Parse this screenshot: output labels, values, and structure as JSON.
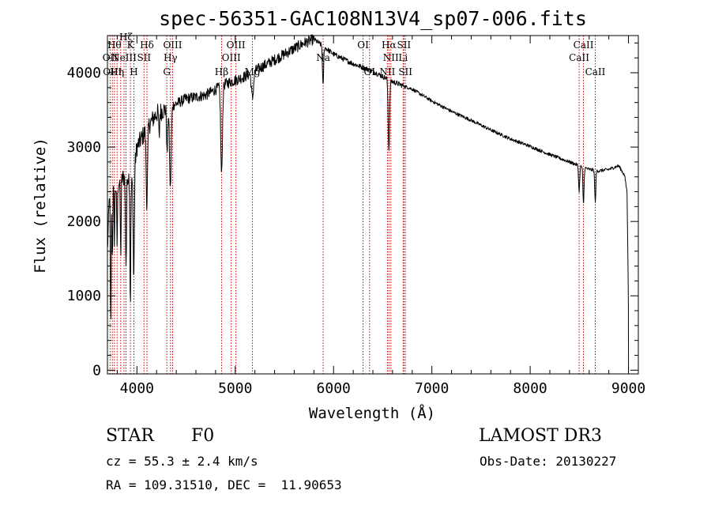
{
  "chart_data": {
    "type": "line",
    "title": "spec-56351-GAC108N13V4_sp07-006.fits",
    "xlabel": "Wavelength (Å)",
    "ylabel": "Flux (relative)",
    "xlim": [
      3700,
      9100
    ],
    "ylim": [
      -50,
      4500
    ],
    "xticks": [
      4000,
      5000,
      6000,
      7000,
      8000,
      9000
    ],
    "yticks": [
      0,
      1000,
      2000,
      3000,
      4000
    ],
    "continuum": [
      [
        3700,
        1600
      ],
      [
        3720,
        2350
      ],
      [
        3800,
        2500
      ],
      [
        3900,
        2650
      ],
      [
        3950,
        2500
      ],
      [
        4000,
        3000
      ],
      [
        4100,
        3250
      ],
      [
        4200,
        3450
      ],
      [
        4350,
        3550
      ],
      [
        4500,
        3650
      ],
      [
        4700,
        3700
      ],
      [
        4900,
        3850
      ],
      [
        5100,
        3950
      ],
      [
        5300,
        4100
      ],
      [
        5500,
        4250
      ],
      [
        5700,
        4400
      ],
      [
        5800,
        4450
      ],
      [
        5900,
        4350
      ],
      [
        6000,
        4250
      ],
      [
        6200,
        4120
      ],
      [
        6400,
        4020
      ],
      [
        6600,
        3880
      ],
      [
        6800,
        3780
      ],
      [
        7000,
        3620
      ],
      [
        7200,
        3480
      ],
      [
        7400,
        3360
      ],
      [
        7600,
        3230
      ],
      [
        7800,
        3110
      ],
      [
        8000,
        3010
      ],
      [
        8200,
        2900
      ],
      [
        8400,
        2800
      ],
      [
        8500,
        2750
      ],
      [
        8600,
        2700
      ],
      [
        8700,
        2680
      ],
      [
        8800,
        2700
      ],
      [
        8900,
        2750
      ],
      [
        8960,
        2620
      ],
      [
        8985,
        2400
      ],
      [
        8995,
        1400
      ],
      [
        9000,
        800
      ]
    ],
    "absorption": [
      {
        "x": 3734,
        "depth": 1800,
        "width": 6
      },
      {
        "x": 3750,
        "depth": 900,
        "width": 5
      },
      {
        "x": 3771,
        "depth": 700,
        "width": 5
      },
      {
        "x": 3798,
        "depth": 800,
        "width": 6
      },
      {
        "x": 3835,
        "depth": 1000,
        "width": 6
      },
      {
        "x": 3889,
        "depth": 1200,
        "width": 8
      },
      {
        "x": 3933,
        "depth": 1650,
        "width": 6
      },
      {
        "x": 3968,
        "depth": 1450,
        "width": 8
      },
      {
        "x": 4101,
        "depth": 1000,
        "width": 10
      },
      {
        "x": 4226,
        "depth": 350,
        "width": 6
      },
      {
        "x": 4307,
        "depth": 600,
        "width": 8
      },
      {
        "x": 4340,
        "depth": 1100,
        "width": 12
      },
      {
        "x": 4861,
        "depth": 1200,
        "width": 12
      },
      {
        "x": 5175,
        "depth": 350,
        "width": 15
      },
      {
        "x": 5893,
        "depth": 550,
        "width": 8
      },
      {
        "x": 6563,
        "depth": 950,
        "width": 10
      },
      {
        "x": 8498,
        "depth": 350,
        "width": 8
      },
      {
        "x": 8542,
        "depth": 500,
        "width": 8
      },
      {
        "x": 8662,
        "depth": 420,
        "width": 8
      }
    ],
    "lines": [
      {
        "wave": 3727,
        "label": "OII",
        "row": 2
      },
      {
        "wave": 3750,
        "label": "OIII",
        "row": 3
      },
      {
        "wave": 3771,
        "label": "Hθ",
        "row": 1
      },
      {
        "wave": 3798,
        "label": "Hη",
        "row": 3
      },
      {
        "wave": 3835,
        "label": "",
        "row": 0
      },
      {
        "wave": 3869,
        "label": "NeIII",
        "row": 2
      },
      {
        "wave": 3889,
        "label": "Hζ",
        "row": 0
      },
      {
        "wave": 3934,
        "label": "K",
        "row": 1
      },
      {
        "wave": 3969,
        "label": "H",
        "row": 3
      },
      {
        "wave": 4072,
        "label": "SII",
        "row": 2
      },
      {
        "wave": 4102,
        "label": "Hδ",
        "row": 1
      },
      {
        "wave": 4304,
        "label": "G",
        "row": 3
      },
      {
        "wave": 4341,
        "label": "Hγ",
        "row": 2
      },
      {
        "wave": 4363,
        "label": "OIII",
        "row": 1
      },
      {
        "wave": 4861,
        "label": "Hβ",
        "row": 3
      },
      {
        "wave": 4959,
        "label": "OIII",
        "row": 2
      },
      {
        "wave": 5007,
        "label": "OIII",
        "row": 1
      },
      {
        "wave": 5175,
        "label": "Mg",
        "row": 3
      },
      {
        "wave": 5894,
        "label": "Na",
        "row": 2
      },
      {
        "wave": 6300,
        "label": "OI",
        "row": 1
      },
      {
        "wave": 6366,
        "label": "OI",
        "row": 3
      },
      {
        "wave": 6548,
        "label": "NII",
        "row": 3
      },
      {
        "wave": 6563,
        "label": "Hα",
        "row": 1
      },
      {
        "wave": 6583,
        "label": "NII",
        "row": 2
      },
      {
        "wave": 6708,
        "label": "Li",
        "row": 2
      },
      {
        "wave": 6716,
        "label": "SII",
        "row": 1
      },
      {
        "wave": 6731,
        "label": "SII",
        "row": 3
      },
      {
        "wave": 8498,
        "label": "CaII",
        "row": 2
      },
      {
        "wave": 8542,
        "label": "CaII",
        "row": 1
      },
      {
        "wave": 8662,
        "label": "CaII",
        "row": 3
      }
    ]
  },
  "info": {
    "class": "STAR",
    "subclass": "F0",
    "survey": "LAMOST DR3",
    "redshift": "cz = 55.3 ± 2.4 km/s",
    "obs_date": "Obs-Date: 20130227",
    "coords": "RA = 109.31510, DEC =  11.90653"
  },
  "colors": {
    "axis": "#000000",
    "spectrum": "#000000",
    "line_marker": "#cc0000"
  }
}
